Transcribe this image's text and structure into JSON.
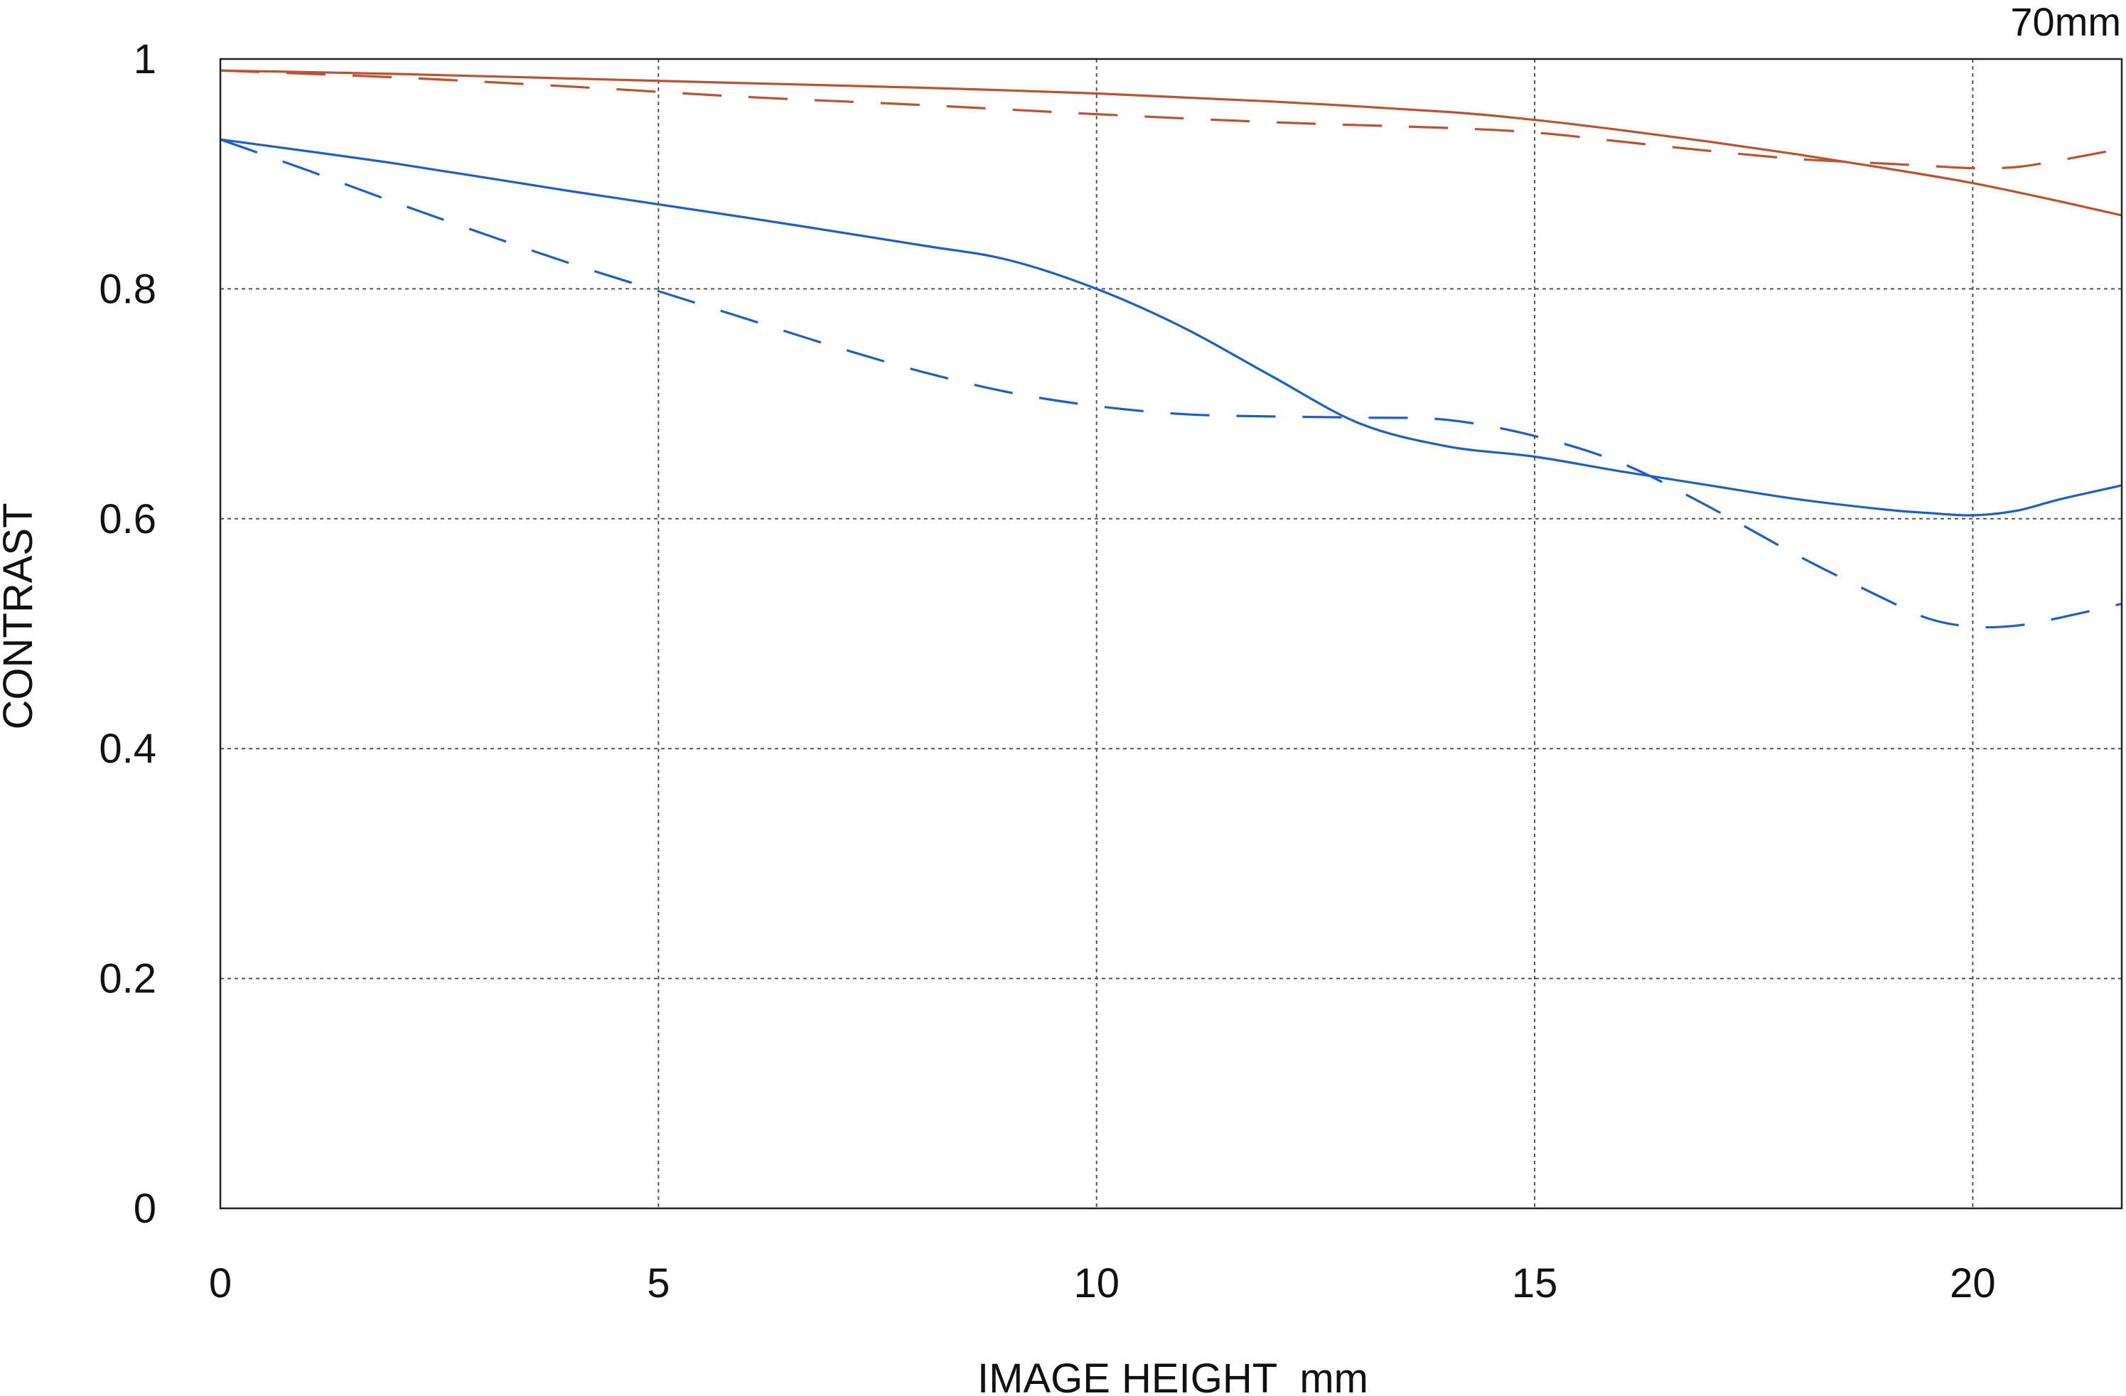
{
  "chart_data": {
    "type": "line",
    "title": "70mm",
    "xlabel": "IMAGE HEIGHT  mm",
    "ylabel": "CONTRAST",
    "xlim": [
      0,
      21.7
    ],
    "ylim": [
      0,
      1
    ],
    "x_ticks": [
      0,
      5,
      10,
      15,
      20
    ],
    "y_ticks": [
      0,
      0.2,
      0.4,
      0.6,
      0.8,
      1
    ],
    "x_tick_labels": [
      "0",
      "5",
      "10",
      "15",
      "20"
    ],
    "y_tick_labels": [
      "0",
      "0.2",
      "0.4",
      "0.6",
      "0.8",
      "1"
    ],
    "grid": true,
    "series": [
      {
        "color": "#c0502e",
        "style": "solid",
        "x": [
          0,
          2,
          4,
          6,
          8,
          10,
          12,
          14,
          15,
          16,
          17,
          18,
          19,
          20,
          21,
          21.7
        ],
        "y": [
          0.99,
          0.987,
          0.983,
          0.979,
          0.975,
          0.97,
          0.963,
          0.954,
          0.947,
          0.938,
          0.928,
          0.917,
          0.905,
          0.892,
          0.876,
          0.864
        ]
      },
      {
        "color": "#c0502e",
        "style": "dashed",
        "x": [
          0,
          2,
          4,
          6,
          8,
          10,
          12,
          14,
          15,
          16,
          17,
          18,
          19,
          19.5,
          20,
          20.5,
          21,
          21.7
        ],
        "y": [
          0.99,
          0.984,
          0.976,
          0.967,
          0.96,
          0.952,
          0.945,
          0.94,
          0.936,
          0.928,
          0.92,
          0.913,
          0.909,
          0.907,
          0.905,
          0.906,
          0.912,
          0.922
        ]
      },
      {
        "color": "#1a5fd0",
        "style": "solid",
        "x": [
          0,
          2,
          4,
          6,
          8,
          9,
          10,
          11,
          12,
          13,
          14,
          15,
          16,
          17,
          18,
          19,
          19.5,
          20,
          20.5,
          21,
          21.7
        ],
        "y": [
          0.93,
          0.909,
          0.885,
          0.862,
          0.838,
          0.825,
          0.8,
          0.766,
          0.724,
          0.683,
          0.663,
          0.654,
          0.641,
          0.629,
          0.617,
          0.608,
          0.605,
          0.603,
          0.607,
          0.617,
          0.629
        ]
      },
      {
        "color": "#1a5fd0",
        "style": "dashed",
        "x": [
          0,
          1,
          2,
          3,
          4,
          5,
          6,
          7,
          8,
          9,
          10,
          11,
          12,
          13,
          14,
          15,
          16,
          17,
          18,
          19,
          19.5,
          20,
          20.5,
          21,
          21.7
        ],
        "y": [
          0.93,
          0.903,
          0.875,
          0.848,
          0.822,
          0.798,
          0.774,
          0.75,
          0.728,
          0.71,
          0.698,
          0.691,
          0.689,
          0.688,
          0.686,
          0.672,
          0.648,
          0.61,
          0.568,
          0.53,
          0.513,
          0.506,
          0.507,
          0.514,
          0.526
        ]
      }
    ]
  }
}
